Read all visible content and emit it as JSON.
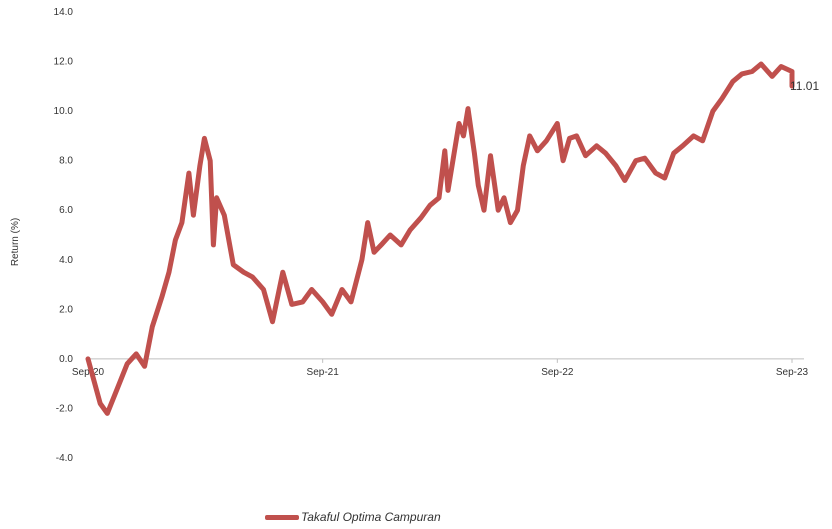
{
  "chart_data": {
    "type": "line",
    "title": "",
    "xlabel": "",
    "ylabel": "Return (%)",
    "ylim": [
      -4.0,
      14.0
    ],
    "yticks": [
      "14.0",
      "12.0",
      "10.0",
      "8.0",
      "6.0",
      "4.0",
      "2.0",
      "0.0",
      "-2.0",
      "-4.0"
    ],
    "xticks": [
      "Sep-20",
      "Sep-21",
      "Sep-22",
      "Sep-23"
    ],
    "grid": false,
    "legend_position": "bottom",
    "end_label": "11.01",
    "colors": {
      "series": "#c0504d",
      "axis": "#bfbfbf",
      "text": "#333333"
    },
    "series": [
      {
        "name": "Takaful Optima Campuran",
        "points": [
          [
            "Sep-20",
            0.0
          ],
          [
            "2020-09-20",
            -1.8
          ],
          [
            "2020-10-01",
            -2.2
          ],
          [
            "2020-10-15",
            -1.3
          ],
          [
            "2020-11-01",
            -0.2
          ],
          [
            "2020-11-15",
            0.2
          ],
          [
            "2020-11-28",
            -0.3
          ],
          [
            "2020-12-10",
            1.3
          ],
          [
            "2020-12-25",
            2.5
          ],
          [
            "2021-01-05",
            3.5
          ],
          [
            "2021-01-15",
            4.8
          ],
          [
            "2021-01-25",
            5.5
          ],
          [
            "2021-02-05",
            7.5
          ],
          [
            "2021-02-12",
            5.8
          ],
          [
            "2021-02-22",
            7.8
          ],
          [
            "2021-03-01",
            8.9
          ],
          [
            "2021-03-10",
            8.0
          ],
          [
            "2021-03-15",
            4.6
          ],
          [
            "2021-03-20",
            6.5
          ],
          [
            "2021-04-01",
            5.8
          ],
          [
            "2021-04-15",
            3.8
          ],
          [
            "2021-05-01",
            3.5
          ],
          [
            "2021-05-15",
            3.3
          ],
          [
            "2021-06-01",
            2.8
          ],
          [
            "2021-06-15",
            1.5
          ],
          [
            "2021-07-01",
            3.5
          ],
          [
            "2021-07-15",
            2.2
          ],
          [
            "2021-08-01",
            2.3
          ],
          [
            "2021-08-15",
            2.8
          ],
          [
            "2021-09-01",
            2.3
          ],
          [
            "2021-09-15",
            1.8
          ],
          [
            "2021-10-01",
            2.8
          ],
          [
            "2021-10-15",
            2.3
          ],
          [
            "2021-11-01",
            4.0
          ],
          [
            "2021-11-10",
            5.5
          ],
          [
            "2021-11-20",
            4.3
          ],
          [
            "2021-12-01",
            4.6
          ],
          [
            "2021-12-15",
            5.0
          ],
          [
            "2022-01-01",
            4.6
          ],
          [
            "2022-01-15",
            5.2
          ],
          [
            "2022-02-01",
            5.7
          ],
          [
            "2022-02-15",
            6.2
          ],
          [
            "2022-03-01",
            6.5
          ],
          [
            "2022-03-10",
            8.4
          ],
          [
            "2022-03-15",
            6.8
          ],
          [
            "2022-04-01",
            9.5
          ],
          [
            "2022-04-08",
            9.0
          ],
          [
            "2022-04-15",
            10.1
          ],
          [
            "2022-04-25",
            8.3
          ],
          [
            "2022-05-01",
            7.0
          ],
          [
            "2022-05-10",
            6.0
          ],
          [
            "2022-05-20",
            8.2
          ],
          [
            "2022-06-01",
            6.0
          ],
          [
            "2022-06-10",
            6.5
          ],
          [
            "2022-06-20",
            5.5
          ],
          [
            "2022-07-01",
            6.0
          ],
          [
            "2022-07-10",
            7.8
          ],
          [
            "2022-07-20",
            9.0
          ],
          [
            "2022-08-01",
            8.4
          ],
          [
            "2022-08-15",
            8.8
          ],
          [
            "2022-09-01",
            9.5
          ],
          [
            "2022-09-10",
            8.0
          ],
          [
            "2022-09-20",
            8.9
          ],
          [
            "2022-10-01",
            9.0
          ],
          [
            "2022-10-15",
            8.2
          ],
          [
            "2022-11-01",
            8.6
          ],
          [
            "2022-11-15",
            8.3
          ],
          [
            "2022-12-01",
            7.8
          ],
          [
            "2022-12-15",
            7.2
          ],
          [
            "2023-01-01",
            8.0
          ],
          [
            "2023-01-15",
            8.1
          ],
          [
            "2023-02-01",
            7.5
          ],
          [
            "2023-02-15",
            7.3
          ],
          [
            "2023-03-01",
            8.3
          ],
          [
            "2023-03-15",
            8.6
          ],
          [
            "2023-04-01",
            9.0
          ],
          [
            "2023-04-15",
            8.8
          ],
          [
            "2023-05-01",
            10.0
          ],
          [
            "2023-05-15",
            10.5
          ],
          [
            "2023-06-01",
            11.2
          ],
          [
            "2023-06-15",
            11.5
          ],
          [
            "2023-07-01",
            11.6
          ],
          [
            "2023-07-15",
            11.9
          ],
          [
            "2023-08-01",
            11.4
          ],
          [
            "2023-08-15",
            11.8
          ],
          [
            "2023-09-01",
            11.6
          ],
          [
            "Sep-23",
            11.01
          ]
        ]
      }
    ]
  }
}
